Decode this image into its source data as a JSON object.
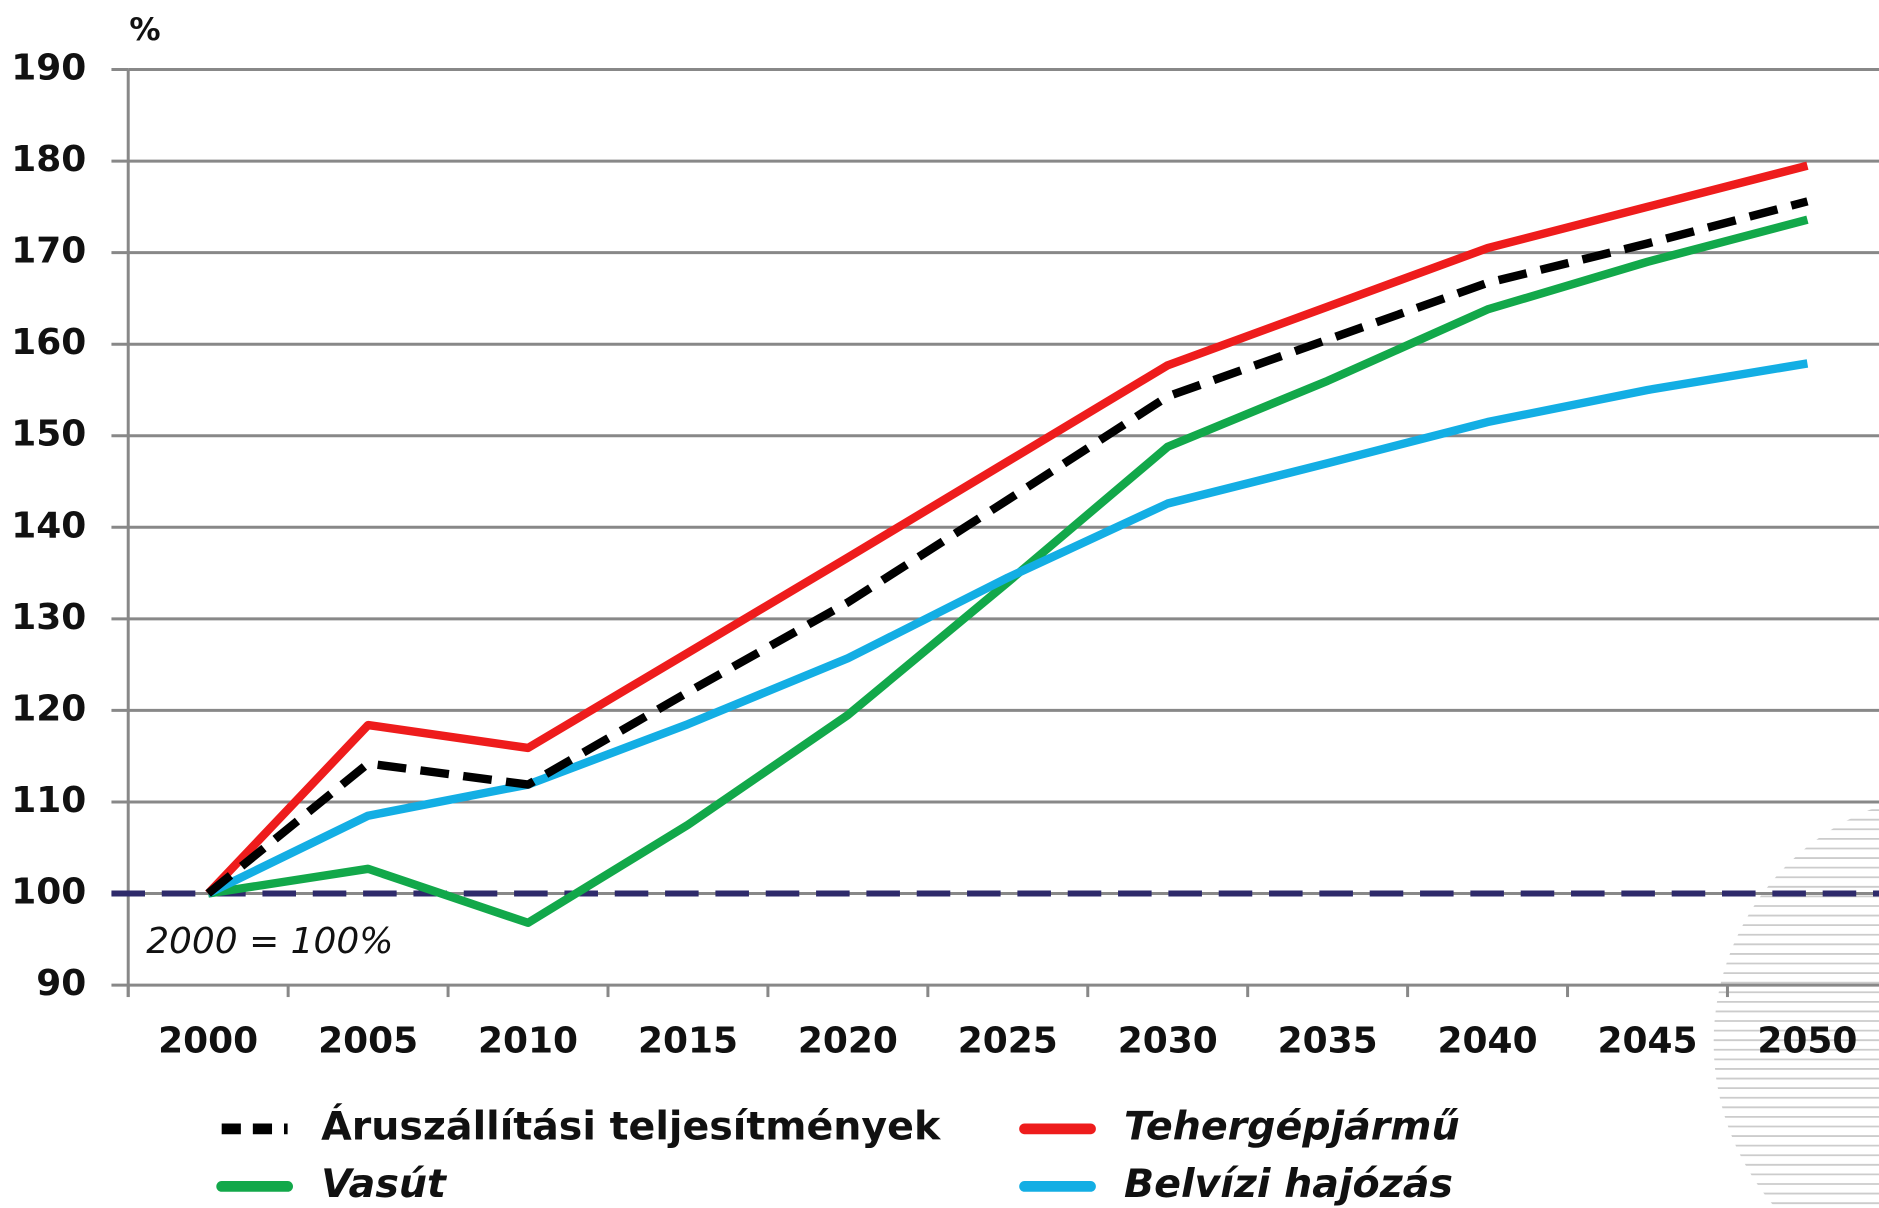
{
  "chart_data": {
    "type": "line",
    "unit_label": "%",
    "annotation": "2000 = 100%",
    "categories": [
      "2000",
      "2005",
      "2010",
      "2015",
      "2020",
      "2025",
      "2030",
      "2035",
      "2040",
      "2045",
      "2050"
    ],
    "series": [
      {
        "name": "Áruszállítási teljesítmények",
        "color": "#000000",
        "dashed": true,
        "values": [
          100,
          114.2,
          111.9,
          122,
          131.8,
          143,
          154.3,
          160.5,
          166.7,
          171,
          175.6
        ]
      },
      {
        "name": "Tehergépjármű",
        "color": "#ee1c1c",
        "values": [
          100,
          118.4,
          115.9,
          126.3,
          136.7,
          147.2,
          157.7,
          164.1,
          170.5,
          175,
          179.5
        ]
      },
      {
        "name": "Vasút",
        "color": "#12a84a",
        "values": [
          100,
          102.7,
          96.8,
          107.5,
          119.5,
          134,
          148.8,
          156,
          163.8,
          169,
          173.6
        ]
      },
      {
        "name": "Belvízi hajózás",
        "color": "#13aee4",
        "values": [
          100,
          108.5,
          111.9,
          118.5,
          125.7,
          134.5,
          142.6,
          147,
          151.5,
          155,
          157.9
        ]
      }
    ],
    "baseline": 100,
    "baseline_color": "#2e2a6b",
    "ylim": [
      90,
      190
    ],
    "yticks": [
      90,
      100,
      110,
      120,
      130,
      140,
      150,
      160,
      170,
      180,
      190
    ],
    "grid": true
  }
}
